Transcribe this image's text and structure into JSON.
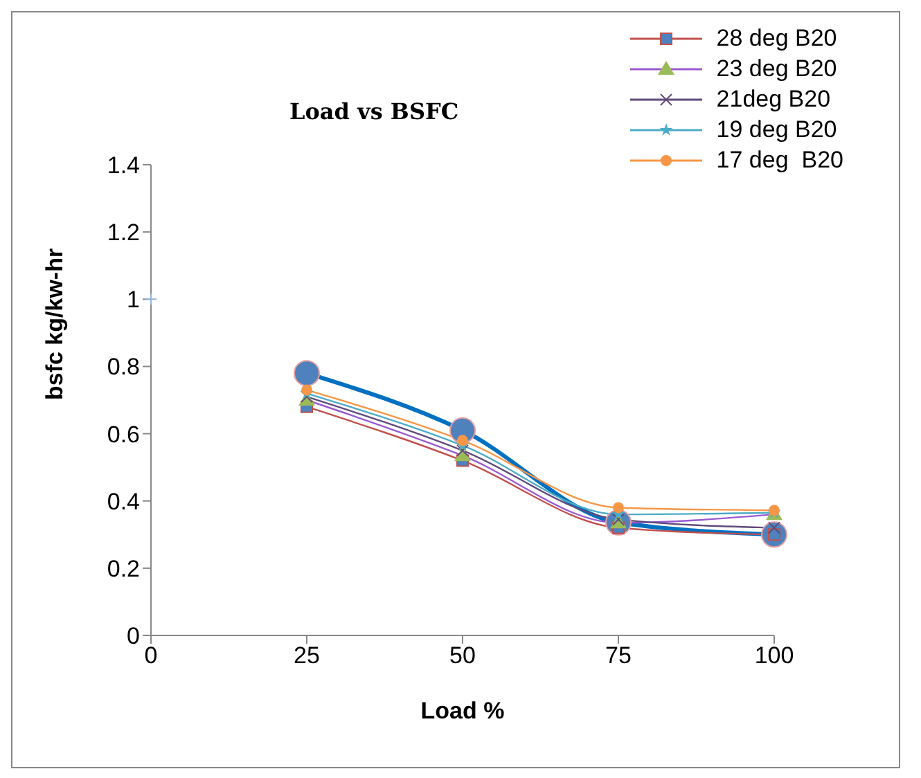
{
  "chart_data": {
    "type": "line",
    "title": "Load vs BSFC",
    "xlabel": "Load %",
    "ylabel": "bsfc    kg/kw-hr",
    "x": [
      25,
      50,
      75,
      100
    ],
    "series": [
      {
        "name": "28 deg B20",
        "color": "#c0504d",
        "marker": "square",
        "values": [
          0.68,
          0.52,
          0.32,
          0.3
        ]
      },
      {
        "name": "23 deg B20",
        "color": "#9b59d0",
        "marker": "triangle",
        "values": [
          0.7,
          0.535,
          0.335,
          0.36
        ]
      },
      {
        "name": "21deg B20",
        "color": "#604a7b",
        "marker": "cross",
        "values": [
          0.71,
          0.55,
          0.345,
          0.32
        ]
      },
      {
        "name": "19 deg B20",
        "color": "#4bacc6",
        "marker": "star",
        "values": [
          0.72,
          0.565,
          0.36,
          0.365
        ]
      },
      {
        "name": "17 deg  B20",
        "color": "#f79646",
        "marker": "circle",
        "values": [
          0.73,
          0.58,
          0.38,
          0.372
        ]
      },
      {
        "color": "#0070c0",
        "marker": "circle",
        "values": [
          0.78,
          0.61,
          0.336,
          0.3
        ]
      },
      {
        "type": "scatter",
        "color": "#95b3d7",
        "marker": "cross",
        "x": [
          0
        ],
        "values": [
          1
        ]
      }
    ],
    "xlim": [
      0,
      100
    ],
    "xticks": [
      0,
      25,
      50,
      75,
      100
    ],
    "ylim": [
      0,
      1.4
    ],
    "yticks": [
      0,
      0.2,
      0.4,
      0.6,
      0.8,
      1,
      1.2,
      1.4
    ],
    "grid": false,
    "legend": "top right"
  }
}
